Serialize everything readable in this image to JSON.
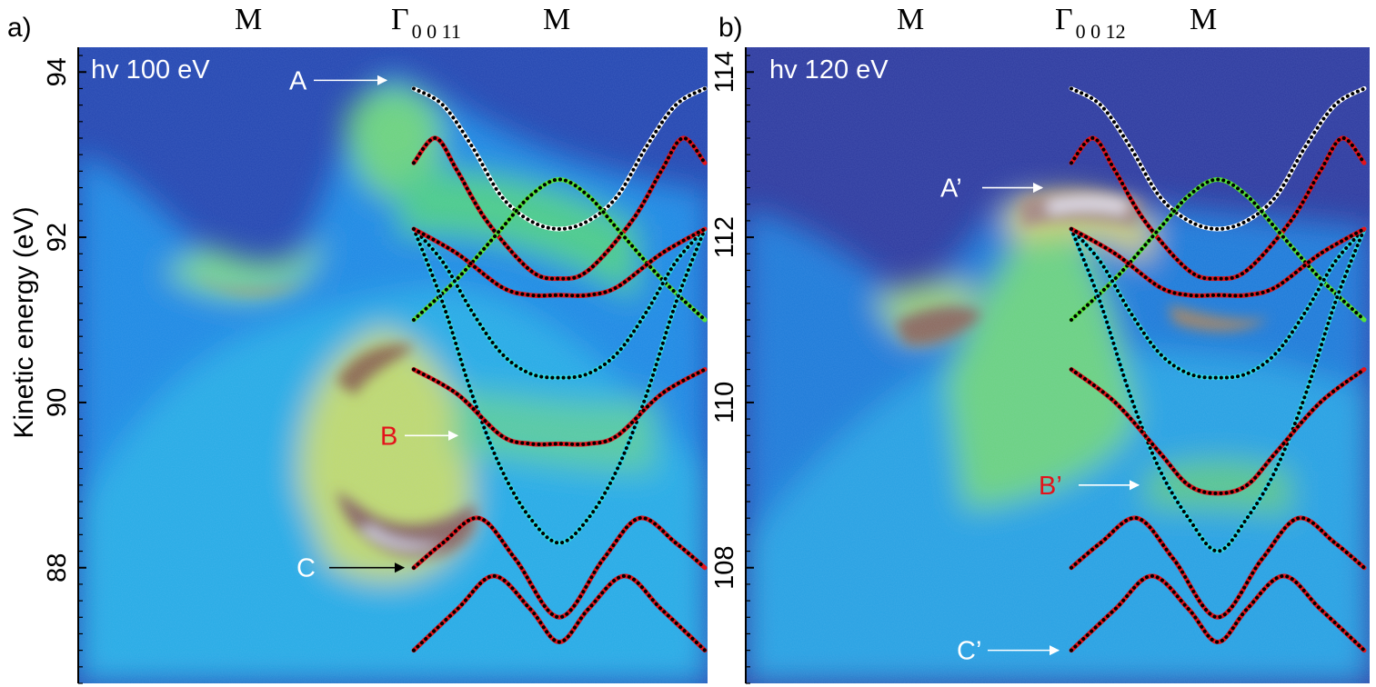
{
  "ylabel": "Kinetic energy (eV)",
  "colors": {
    "background_dark": "#2f3596",
    "band_red": "#e3141b",
    "band_cyan": "#2fd8e3",
    "band_green": "#55e33a",
    "band_white": "#ffffff",
    "band_pink": "#f2a0a8"
  },
  "chart_data": [
    {
      "type": "heatmap",
      "panel": "a)",
      "photon_label": "hv 100 eV",
      "top_labels": [
        {
          "main": "M",
          "sub": ""
        },
        {
          "main": "Γ",
          "sub": "0 0 11"
        },
        {
          "main": "M",
          "sub": ""
        }
      ],
      "ylim": [
        86.6,
        94.3
      ],
      "yticks": [
        94,
        92,
        90,
        88
      ],
      "annotations": [
        {
          "text": "A",
          "color": "#ffffff",
          "x": 0.0,
          "y": 93.9
        },
        {
          "text": "B",
          "color": "#e3141b",
          "x": 0.3,
          "y": 89.6
        },
        {
          "text": "C",
          "color": "#ffffff",
          "x": 0.0,
          "y": 88.0
        }
      ],
      "bands": [
        {
          "color": "#ffffff",
          "x": [
            0,
            0.2,
            0.4,
            0.6,
            0.8,
            1.0,
            1.2,
            1.4,
            1.6,
            1.8,
            2.0
          ],
          "y": [
            93.8,
            93.6,
            93.1,
            92.5,
            92.2,
            92.1,
            92.2,
            92.5,
            93.1,
            93.6,
            93.8
          ]
        },
        {
          "color": "#e3141b",
          "x": [
            0,
            0.15,
            0.3,
            0.5,
            0.8,
            1.0,
            1.2,
            1.5,
            1.7,
            1.85,
            2.0
          ],
          "y": [
            92.9,
            93.2,
            92.8,
            92.2,
            91.6,
            91.5,
            91.6,
            92.2,
            92.8,
            93.2,
            92.9
          ]
        },
        {
          "color": "#55e33a",
          "x": [
            0,
            0.3,
            0.6,
            0.8,
            1.0,
            1.2,
            1.4,
            1.7,
            2.0
          ],
          "y": [
            91.0,
            91.5,
            92.1,
            92.5,
            92.7,
            92.5,
            92.1,
            91.5,
            91.0
          ]
        },
        {
          "color": "#2fd8e3",
          "x": [
            0,
            0.2,
            0.4,
            0.6,
            0.8,
            1.0,
            1.2,
            1.4,
            1.6,
            1.8,
            2.0
          ],
          "y": [
            92.1,
            91.7,
            91.1,
            90.6,
            90.35,
            90.3,
            90.35,
            90.6,
            91.1,
            91.7,
            92.1
          ]
        },
        {
          "color": "#2fd8e3",
          "x": [
            0,
            0.2,
            0.4,
            0.6,
            0.8,
            1.0,
            1.2,
            1.4,
            1.6,
            1.8,
            2.0
          ],
          "y": [
            92.1,
            91.2,
            90.1,
            89.2,
            88.6,
            88.3,
            88.6,
            89.2,
            90.1,
            91.2,
            92.1
          ]
        },
        {
          "color": "#e3141b",
          "x": [
            0,
            0.3,
            0.6,
            0.8,
            1.0,
            1.2,
            1.4,
            1.7,
            2.0
          ],
          "y": [
            92.1,
            91.8,
            91.4,
            91.3,
            91.3,
            91.3,
            91.4,
            91.8,
            92.1
          ]
        },
        {
          "color": "#e3141b",
          "x": [
            0,
            0.3,
            0.6,
            0.8,
            1.0,
            1.2,
            1.4,
            1.7,
            2.0
          ],
          "y": [
            90.4,
            90.1,
            89.6,
            89.5,
            89.5,
            89.5,
            89.6,
            90.1,
            90.4
          ]
        },
        {
          "color": "#e3141b",
          "x": [
            0,
            0.2,
            0.45,
            0.7,
            1.0,
            1.3,
            1.55,
            1.8,
            2.0
          ],
          "y": [
            88.0,
            88.3,
            88.6,
            88.1,
            87.4,
            88.1,
            88.6,
            88.3,
            88.0
          ]
        },
        {
          "color": "#e3141b",
          "x": [
            0,
            0.3,
            0.55,
            0.8,
            1.0,
            1.2,
            1.45,
            1.7,
            2.0
          ],
          "y": [
            87.0,
            87.5,
            87.9,
            87.5,
            87.1,
            87.5,
            87.9,
            87.5,
            87.0
          ]
        }
      ]
    },
    {
      "type": "heatmap",
      "panel": "b)",
      "photon_label": "hv 120 eV",
      "top_labels": [
        {
          "main": "M",
          "sub": ""
        },
        {
          "main": "Γ",
          "sub": "0 0 12"
        },
        {
          "main": "M",
          "sub": ""
        }
      ],
      "ylim": [
        106.6,
        114.3
      ],
      "yticks": [
        114,
        112,
        110,
        108
      ],
      "annotations": [
        {
          "text": "A’",
          "color": "#ffffff",
          "x": 0.0,
          "y": 112.6
        },
        {
          "text": "B’",
          "color": "#e3141b",
          "x": 0.3,
          "y": 109.0
        },
        {
          "text": "C’",
          "color": "#ffffff",
          "x": 0.0,
          "y": 107.0
        }
      ],
      "bands": [
        {
          "color": "#ffffff",
          "x": [
            0,
            0.2,
            0.4,
            0.6,
            0.8,
            1.0,
            1.2,
            1.4,
            1.6,
            1.8,
            2.0
          ],
          "y": [
            113.8,
            113.6,
            113.1,
            112.5,
            112.2,
            112.1,
            112.2,
            112.5,
            113.1,
            113.6,
            113.8
          ]
        },
        {
          "color": "#e3141b",
          "x": [
            0,
            0.15,
            0.3,
            0.5,
            0.8,
            1.0,
            1.2,
            1.5,
            1.7,
            1.85,
            2.0
          ],
          "y": [
            112.9,
            113.2,
            112.8,
            112.2,
            111.6,
            111.5,
            111.6,
            112.2,
            112.8,
            113.2,
            112.9
          ]
        },
        {
          "color": "#55e33a",
          "x": [
            0,
            0.3,
            0.6,
            0.8,
            1.0,
            1.2,
            1.4,
            1.7,
            2.0
          ],
          "y": [
            111.0,
            111.5,
            112.1,
            112.5,
            112.7,
            112.5,
            112.1,
            111.5,
            111.0
          ]
        },
        {
          "color": "#2fd8e3",
          "x": [
            0,
            0.2,
            0.4,
            0.6,
            0.8,
            1.0,
            1.2,
            1.4,
            1.6,
            1.8,
            2.0
          ],
          "y": [
            112.1,
            111.7,
            111.1,
            110.6,
            110.35,
            110.3,
            110.35,
            110.6,
            111.1,
            111.7,
            112.1
          ]
        },
        {
          "color": "#2fd8e3",
          "x": [
            0,
            0.2,
            0.4,
            0.6,
            0.8,
            1.0,
            1.2,
            1.4,
            1.6,
            1.8,
            2.0
          ],
          "y": [
            112.1,
            111.2,
            110.1,
            109.2,
            108.6,
            108.2,
            108.6,
            109.2,
            110.1,
            111.2,
            112.1
          ]
        },
        {
          "color": "#e3141b",
          "x": [
            0,
            0.3,
            0.6,
            0.8,
            1.0,
            1.2,
            1.4,
            1.7,
            2.0
          ],
          "y": [
            112.1,
            111.8,
            111.4,
            111.3,
            111.3,
            111.3,
            111.4,
            111.8,
            112.1
          ]
        },
        {
          "color": "#e3141b",
          "x": [
            0,
            0.3,
            0.6,
            0.8,
            1.0,
            1.2,
            1.4,
            1.7,
            2.0
          ],
          "y": [
            110.4,
            110.0,
            109.4,
            109.0,
            108.9,
            109.0,
            109.4,
            110.0,
            110.4
          ]
        },
        {
          "color": "#e3141b",
          "x": [
            0,
            0.2,
            0.45,
            0.7,
            1.0,
            1.3,
            1.55,
            1.8,
            2.0
          ],
          "y": [
            108.0,
            108.3,
            108.6,
            108.1,
            107.4,
            108.1,
            108.6,
            108.3,
            108.0
          ]
        },
        {
          "color": "#e3141b",
          "x": [
            0,
            0.3,
            0.55,
            0.8,
            1.0,
            1.2,
            1.45,
            1.7,
            2.0
          ],
          "y": [
            107.0,
            107.5,
            107.9,
            107.5,
            107.1,
            107.5,
            107.9,
            107.5,
            107.0
          ]
        }
      ]
    }
  ]
}
